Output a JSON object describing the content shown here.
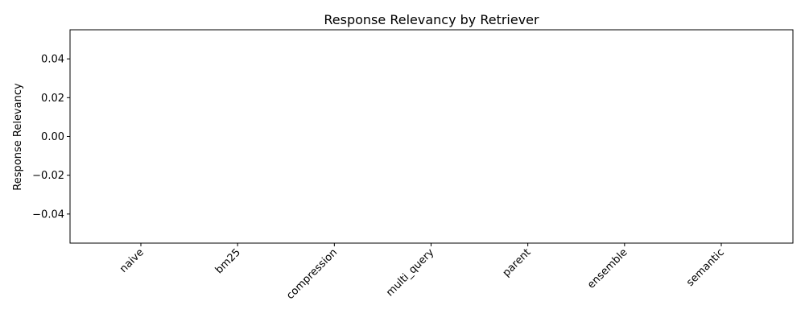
{
  "chart_data": {
    "type": "bar",
    "title": "Response Relevancy by Retriever",
    "xlabel": "",
    "ylabel": "Response Relevancy",
    "categories": [
      "naive",
      "bm25",
      "compression",
      "multi_query",
      "parent",
      "ensemble",
      "semantic"
    ],
    "values": [
      0,
      0,
      0,
      0,
      0,
      0,
      0
    ],
    "ylim": [
      -0.055,
      0.055
    ],
    "yticks": [
      -0.04,
      -0.02,
      0.0,
      0.02,
      0.04
    ],
    "ytick_labels": [
      "−0.04",
      "−0.02",
      "0.00",
      "0.02",
      "0.04"
    ],
    "bar_color": "#1f77b4",
    "grid": false,
    "legend": "none"
  }
}
